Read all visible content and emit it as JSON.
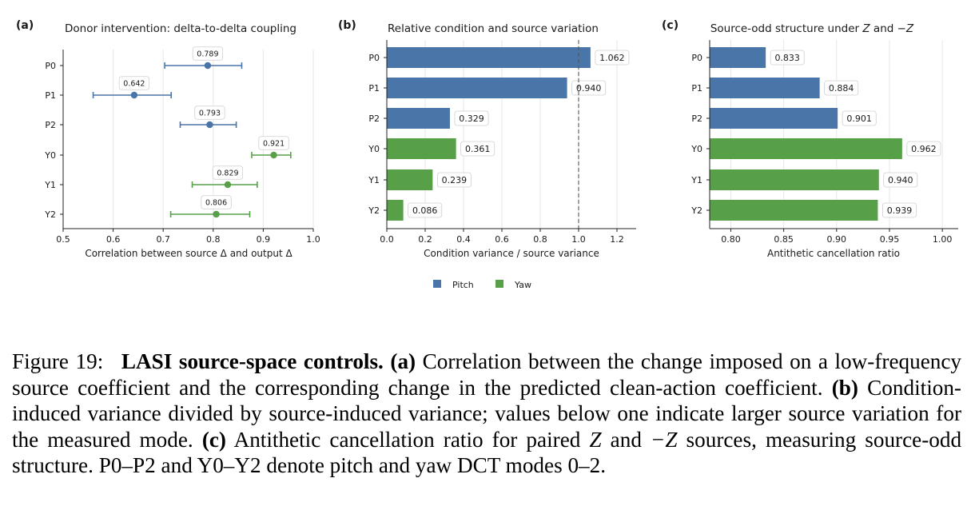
{
  "colors": {
    "pitch": "#4a75a8",
    "yaw": "#57a048",
    "grid": "#e6e6e6",
    "axis": "#222222"
  },
  "chart_data": [
    {
      "type": "scatter",
      "panel_label": "(a)",
      "title": "Donor intervention: delta-to-delta coupling",
      "xlabel": "Correlation between source Δ and output Δ",
      "ylabel": "",
      "xlim": [
        0.5,
        1.0
      ],
      "xticks": [
        "0.5",
        "0.6",
        "0.7",
        "0.8",
        "0.9",
        "1.0"
      ],
      "grid": "vertical",
      "categories": [
        "P0",
        "P1",
        "P2",
        "Y0",
        "Y1",
        "Y2"
      ],
      "values": [
        0.789,
        0.642,
        0.793,
        0.921,
        0.829,
        0.806
      ],
      "labels": [
        "0.789",
        "0.642",
        "0.793",
        "0.921",
        "0.829",
        "0.806"
      ],
      "ci_low": [
        0.703,
        0.56,
        0.734,
        0.877,
        0.758,
        0.715
      ],
      "ci_high": [
        0.857,
        0.716,
        0.846,
        0.955,
        0.888,
        0.873
      ],
      "groups": [
        "pitch",
        "pitch",
        "pitch",
        "yaw",
        "yaw",
        "yaw"
      ]
    },
    {
      "type": "bar",
      "panel_label": "(b)",
      "title": "Relative condition and source variation",
      "xlabel": "Condition variance / source variance",
      "ylabel": "",
      "xlim": [
        0.0,
        1.3
      ],
      "xticks": [
        "0.0",
        "0.2",
        "0.4",
        "0.6",
        "0.8",
        "1.0",
        "1.2"
      ],
      "grid": "vertical",
      "reference_line": 1.0,
      "categories": [
        "P0",
        "P1",
        "P2",
        "Y0",
        "Y1",
        "Y2"
      ],
      "values": [
        1.062,
        0.94,
        0.329,
        0.361,
        0.239,
        0.086
      ],
      "labels": [
        "1.062",
        "0.940",
        "0.329",
        "0.361",
        "0.239",
        "0.086"
      ],
      "groups": [
        "pitch",
        "pitch",
        "pitch",
        "yaw",
        "yaw",
        "yaw"
      ],
      "legend": {
        "position": "bottom-center",
        "entries": [
          "Pitch",
          "Yaw"
        ]
      }
    },
    {
      "type": "bar",
      "panel_label": "(c)",
      "title": "Source-odd structure under Z and −Z",
      "xlabel": "Antithetic cancellation ratio",
      "ylabel": "",
      "xlim": [
        0.78,
        1.015
      ],
      "xticks": [
        "0.80",
        "0.85",
        "0.90",
        "0.95",
        "1.00"
      ],
      "grid": "vertical",
      "categories": [
        "P0",
        "P1",
        "P2",
        "Y0",
        "Y1",
        "Y2"
      ],
      "values": [
        0.833,
        0.884,
        0.901,
        0.962,
        0.94,
        0.939
      ],
      "labels": [
        "0.833",
        "0.884",
        "0.901",
        "0.962",
        "0.940",
        "0.939"
      ],
      "groups": [
        "pitch",
        "pitch",
        "pitch",
        "yaw",
        "yaw",
        "yaw"
      ]
    }
  ],
  "caption": {
    "figure_number": "Figure 19:",
    "heading": "LASI source-space controls.",
    "part_a_label": "(a)",
    "part_a_text": "Correlation between the change imposed on a low-frequency source coefficient and the corresponding change in the predicted clean-action coefficient.",
    "part_b_label": "(b)",
    "part_b_text": "Condition-induced variance divided by source-induced variance; values below one indicate larger source variation for the measured mode.",
    "part_c_label": "(c)",
    "part_c_text_1": "Antithetic cancellation ratio for paired",
    "z": "Z",
    "and_word": "and",
    "neg_z": "−Z",
    "part_c_text_2": "sources, measuring source-odd structure. P0–P2 and Y0–Y2 denote pitch and yaw DCT modes 0–2."
  }
}
